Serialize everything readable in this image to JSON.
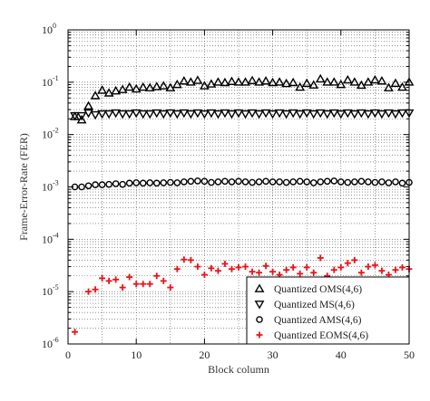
{
  "chart_data": {
    "type": "scatter",
    "xlabel": "Block column",
    "ylabel": "Frame-Error-Rate (FER)",
    "xlim": [
      0,
      50
    ],
    "ylim": [
      1e-06,
      1
    ],
    "yscale": "log",
    "grid": true,
    "legend_position": "bottom-right",
    "x_ticks": [
      "0",
      "10",
      "20",
      "30",
      "40",
      "50"
    ],
    "y_ticks": [
      {
        "base": "10",
        "exp": "-6"
      },
      {
        "base": "10",
        "exp": "-5"
      },
      {
        "base": "10",
        "exp": "-4"
      },
      {
        "base": "10",
        "exp": "-3"
      },
      {
        "base": "10",
        "exp": "-2"
      },
      {
        "base": "10",
        "exp": "-1"
      },
      {
        "base": "10",
        "exp": "0"
      }
    ],
    "x": [
      1,
      2,
      3,
      4,
      5,
      6,
      7,
      8,
      9,
      10,
      11,
      12,
      13,
      14,
      15,
      16,
      17,
      18,
      19,
      20,
      21,
      22,
      23,
      24,
      25,
      26,
      27,
      28,
      29,
      30,
      31,
      32,
      33,
      34,
      35,
      36,
      37,
      38,
      39,
      40,
      41,
      42,
      43,
      44,
      45,
      46,
      47,
      48,
      49,
      50
    ],
    "series": [
      {
        "name": "Quantized OMS(4,6)",
        "marker": "triangle-up",
        "color": "#000000",
        "values": [
          0.022,
          0.019,
          0.035,
          0.055,
          0.07,
          0.062,
          0.068,
          0.072,
          0.08,
          0.074,
          0.08,
          0.078,
          0.082,
          0.085,
          0.078,
          0.09,
          0.105,
          0.1,
          0.108,
          0.085,
          0.092,
          0.1,
          0.098,
          0.103,
          0.1,
          0.1,
          0.107,
          0.1,
          0.105,
          0.098,
          0.1,
          0.094,
          0.098,
          0.08,
          0.095,
          0.088,
          0.115,
          0.1,
          0.1,
          0.09,
          0.11,
          0.1,
          0.087,
          0.1,
          0.11,
          0.105,
          0.078,
          0.095,
          0.08,
          0.1
        ]
      },
      {
        "name": "Quantized MS(4,6)",
        "marker": "triangle-down",
        "color": "#000000",
        "values": [
          0.023,
          0.023,
          0.026,
          0.024,
          0.025,
          0.025,
          0.026,
          0.025,
          0.025,
          0.026,
          0.025,
          0.025,
          0.026,
          0.025,
          0.026,
          0.025,
          0.026,
          0.025,
          0.026,
          0.025,
          0.026,
          0.025,
          0.026,
          0.025,
          0.026,
          0.025,
          0.026,
          0.025,
          0.026,
          0.025,
          0.026,
          0.025,
          0.026,
          0.025,
          0.026,
          0.025,
          0.026,
          0.025,
          0.026,
          0.025,
          0.026,
          0.025,
          0.026,
          0.025,
          0.026,
          0.025,
          0.026,
          0.025,
          0.026,
          0.026
        ]
      },
      {
        "name": "Quantized AMS(4,6)",
        "marker": "circle",
        "color": "#000000",
        "values": [
          0.001,
          0.001,
          0.00105,
          0.0011,
          0.0011,
          0.00112,
          0.00115,
          0.00112,
          0.00118,
          0.0012,
          0.00118,
          0.0012,
          0.00118,
          0.0012,
          0.00122,
          0.0012,
          0.00125,
          0.00128,
          0.0013,
          0.00128,
          0.00122,
          0.00125,
          0.00128,
          0.00125,
          0.00128,
          0.00125,
          0.00122,
          0.00125,
          0.00128,
          0.00125,
          0.00125,
          0.00122,
          0.00125,
          0.00128,
          0.00125,
          0.0012,
          0.00125,
          0.00128,
          0.0013,
          0.00125,
          0.00122,
          0.00125,
          0.00128,
          0.00125,
          0.00122,
          0.00125,
          0.0012,
          0.00125,
          0.00118,
          0.00122
        ]
      },
      {
        "name": "Quantized EOMS(4,6)",
        "marker": "plus",
        "color": "#e8141c",
        "values": [
          1.7e-06,
          null,
          1e-05,
          1.1e-05,
          1.8e-05,
          1.6e-05,
          1.7e-05,
          1.2e-05,
          1.9e-05,
          1.4e-05,
          1.4e-05,
          1.4e-05,
          2e-05,
          1.6e-05,
          1.2e-05,
          2.7e-05,
          4.1e-05,
          4e-05,
          3e-05,
          2.1e-05,
          2.8e-05,
          2.5e-05,
          3.4e-05,
          2.7e-05,
          2.9e-05,
          3e-05,
          2.4e-05,
          2.3e-05,
          3.1e-05,
          2.4e-05,
          2.1e-05,
          2.6e-05,
          2.9e-05,
          2.2e-05,
          2.9e-05,
          2.3e-05,
          4.4e-05,
          2e-05,
          2.6e-05,
          2.9e-05,
          3.5e-05,
          4e-05,
          2.3e-05,
          3e-05,
          3.2e-05,
          2.5e-05,
          2.1e-05,
          2.6e-05,
          2.9e-05,
          2.7e-05
        ]
      }
    ]
  }
}
